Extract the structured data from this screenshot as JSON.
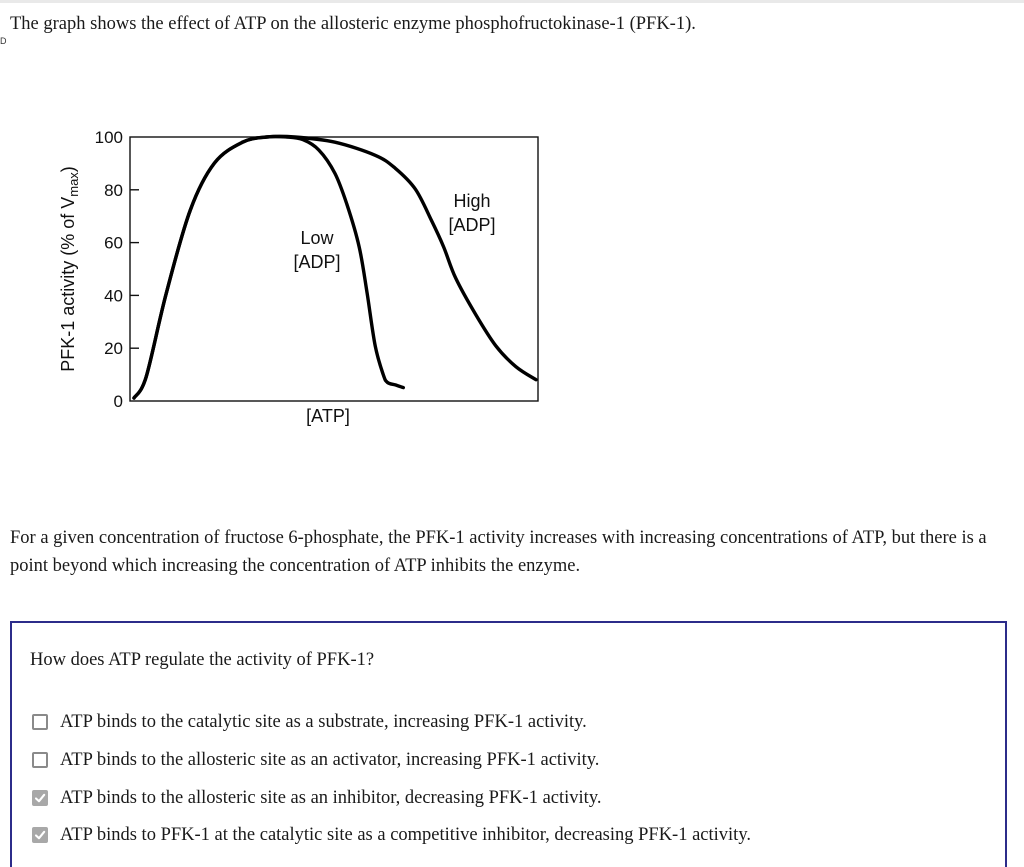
{
  "intro": {
    "text": "The graph shows the effect of ATP on the allosteric enzyme phosphofructokinase-1 (PFK-1)."
  },
  "edge_mark": "D",
  "chart_data": {
    "type": "line",
    "xlabel": "[ATP]",
    "ylabel_main": "PFK-1 activity (% of V",
    "ylabel_sub": "max",
    "ylabel_end": ")",
    "ylim": [
      0,
      100
    ],
    "yticks": [
      "0",
      "20",
      "40",
      "60",
      "80",
      "100"
    ],
    "series": [
      {
        "name_line1": "Low",
        "name_line2": "[ADP]",
        "x": [
          0,
          3,
          8,
          14,
          20,
          27,
          33,
          38,
          42,
          46,
          50,
          53,
          56,
          58,
          60,
          62,
          63,
          65,
          67
        ],
        "y": [
          0,
          8,
          40,
          72,
          90,
          98,
          100,
          100,
          99,
          95,
          86,
          74,
          58,
          40,
          20,
          9,
          6,
          5,
          4
        ]
      },
      {
        "name_line1": "High",
        "name_line2": "[ADP]",
        "x": [
          0,
          3,
          8,
          14,
          20,
          27,
          33,
          40,
          50,
          60,
          65,
          70,
          74,
          77,
          80,
          85,
          90,
          95,
          100
        ],
        "y": [
          0,
          8,
          40,
          72,
          90,
          98,
          100,
          100,
          98,
          93,
          88,
          80,
          68,
          58,
          46,
          32,
          20,
          12,
          7
        ]
      }
    ]
  },
  "description": {
    "text": "For a given concentration of fructose 6-phosphate, the PFK-1 activity increases with increasing concentrations of ATP, but there is a point beyond which increasing the concentration of ATP inhibits the enzyme."
  },
  "question": {
    "text": "How does ATP regulate the activity of PFK-1?",
    "options": [
      {
        "label": "ATP binds to the catalytic site as a substrate, increasing PFK-1 activity.",
        "checked": false
      },
      {
        "label": "ATP binds to the allosteric site as an activator, increasing PFK-1 activity.",
        "checked": false
      },
      {
        "label": "ATP binds to the allosteric site as an inhibitor, decreasing PFK-1 activity.",
        "checked": true
      },
      {
        "label": "ATP binds to PFK-1 at the catalytic site as a competitive inhibitor, decreasing PFK-1 activity.",
        "checked": true
      }
    ]
  }
}
